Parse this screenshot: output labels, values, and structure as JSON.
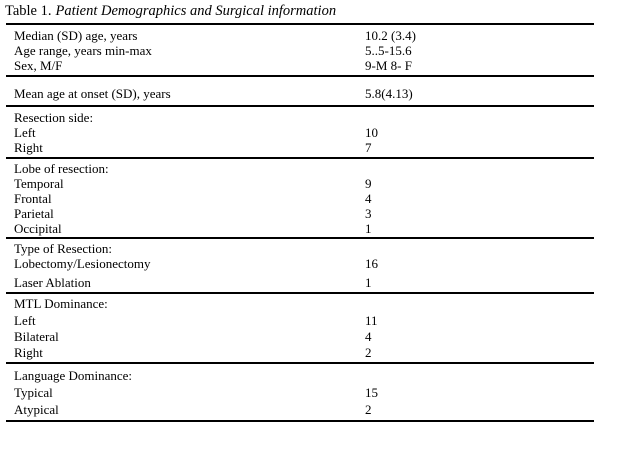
{
  "page": {
    "background": "#ffffff",
    "text_color": "#000000",
    "rule_color": "#000000"
  },
  "title": {
    "prefix": "Table 1.",
    "italic_part": "Patient Demographics and Surgical information"
  },
  "table": {
    "sections": [
      {
        "name": "demographics",
        "rows": [
          {
            "label": "Median (SD) age, years",
            "value": "10.2 (3.4)"
          },
          {
            "label": "Age range, years min-max",
            "value": "5..5-15.6"
          },
          {
            "label": "Sex, M/F",
            "value": "9-M 8- F"
          }
        ]
      },
      {
        "name": "age-at-onset",
        "rows": [
          {
            "label": "Mean age at onset (SD), years",
            "value": "5.8(4.13)"
          }
        ]
      },
      {
        "name": "resection-side",
        "rows": [
          {
            "label": "Resection side:",
            "value": ""
          },
          {
            "label": "Left",
            "value": "10"
          },
          {
            "label": "Right",
            "value": "7"
          }
        ]
      },
      {
        "name": "lobe-of-resection",
        "rows": [
          {
            "label": "Lobe of resection:",
            "value": ""
          },
          {
            "label": "Temporal",
            "value": "9"
          },
          {
            "label": "Frontal",
            "value": "4"
          },
          {
            "label": "Parietal",
            "value": "3"
          },
          {
            "label": "Occipital",
            "value": "1"
          }
        ]
      },
      {
        "name": "type-of-resection",
        "rows": [
          {
            "label": "Type of Resection:",
            "value": ""
          },
          {
            "label": "Lobectomy/Lesionectomy",
            "value": "16"
          },
          {
            "label": "Laser Ablation",
            "value": "1"
          }
        ]
      },
      {
        "name": "mtl-dominance",
        "rows": [
          {
            "label": "MTL Dominance:",
            "value": ""
          },
          {
            "label": "Left",
            "value": "11"
          },
          {
            "label": "Bilateral",
            "value": "4"
          },
          {
            "label": "Right",
            "value": "2"
          }
        ]
      },
      {
        "name": "language-dominance",
        "rows": [
          {
            "label": "Language Dominance:",
            "value": ""
          },
          {
            "label": "Typical",
            "value": "15"
          },
          {
            "label": "Atypical",
            "value": "2"
          }
        ]
      }
    ]
  }
}
